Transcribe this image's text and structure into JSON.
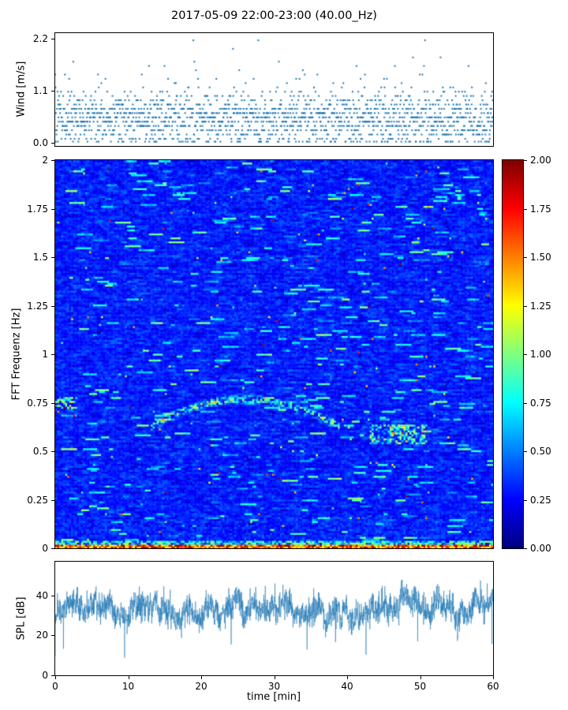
{
  "title": "2017-05-09 22:00-23:00 (40.00_Hz)",
  "colors": {
    "accent": "#1f77b4",
    "axis": "#000000",
    "background": "#ffffff"
  },
  "chart_data": [
    {
      "id": "wind",
      "type": "scatter",
      "ylabel": "Wind [m/s]",
      "ytick_values": [
        0.0,
        1.1,
        2.2
      ],
      "ytick_labels": [
        "0.0",
        "1.1",
        "2.2"
      ],
      "ylim": [
        -0.06,
        2.31
      ],
      "xlim": [
        0,
        60
      ],
      "marker_color": "#1f77b4",
      "n_points": 1700,
      "seed": 20170509,
      "mean": 0.52,
      "std": 0.27,
      "gust_prob": 0.1,
      "gust_scale": 1.5,
      "calm_prob": 0.05,
      "calm_value": 0.03,
      "quantize_step": 0.09
    },
    {
      "id": "spectrogram",
      "type": "heatmap",
      "ylabel": "FFT Frequenz [Hz]",
      "ytick_values": [
        0,
        0.25,
        0.5,
        0.75,
        1,
        1.25,
        1.5,
        1.75,
        2
      ],
      "ytick_labels": [
        "0",
        "0.25",
        "0.5",
        "0.75",
        "1",
        "1.25",
        "1.5",
        "1.75",
        "2"
      ],
      "ylim": [
        0,
        2
      ],
      "xlim": [
        0,
        60
      ],
      "clim": [
        0,
        2
      ],
      "colormap": "jet",
      "rows": 197,
      "cols": 220,
      "seed": 42,
      "base_mean": 0.3,
      "base_std": 0.11,
      "smooth": 0.45,
      "streak_prob": 0.012,
      "streak_len": [
        2,
        9
      ],
      "streak_add": [
        0.15,
        0.7
      ],
      "speckle_prob": 0.003,
      "speckle_add": [
        0.4,
        1.2
      ],
      "hot_speckle_prob": 0.0007,
      "hot_speckle_add": [
        1.0,
        1.8
      ],
      "features": [
        {
          "kind": "band",
          "fmax": 0.022,
          "add_min": 1.1,
          "add_max": 2.0,
          "prob": 1.0
        },
        {
          "kind": "band",
          "fmax": 0.045,
          "add_min": 0.35,
          "add_max": 1.1,
          "prob": 0.8
        },
        {
          "kind": "band",
          "fmax": 0.16,
          "add_min": 0.1,
          "add_max": 0.45,
          "prob": 0.35
        },
        {
          "kind": "arc",
          "t_center": 26,
          "t_half": 13,
          "f_peak": 0.77,
          "curve": 0.00085,
          "width": 0.025,
          "add_min": 0.25,
          "add_max": 1.0,
          "prob": 0.6
        },
        {
          "kind": "blob",
          "t0": 43,
          "t1": 51,
          "f0": 0.54,
          "f1": 0.64,
          "add_min": 0.2,
          "add_max": 0.9,
          "prob": 0.45
        },
        {
          "kind": "blob",
          "t0": 0,
          "t1": 3,
          "f0": 0.72,
          "f1": 0.78,
          "add_min": 0.3,
          "add_max": 1.0,
          "prob": 0.5
        }
      ]
    },
    {
      "id": "colorbar",
      "type": "colorbar",
      "colormap": "jet",
      "tick_values": [
        0,
        0.25,
        0.5,
        0.75,
        1.0,
        1.25,
        1.5,
        1.75,
        2.0
      ],
      "tick_labels": [
        "0.00",
        "0.25",
        "0.50",
        "0.75",
        "1.00",
        "1.25",
        "1.50",
        "1.75",
        "2.00"
      ],
      "range": [
        0,
        2
      ]
    },
    {
      "id": "spl",
      "type": "line",
      "ylabel": "SPL [dB]",
      "xlabel": "time [min]",
      "ytick_values": [
        0,
        20,
        40
      ],
      "ytick_labels": [
        "0",
        "20",
        "40"
      ],
      "xtick_values": [
        0,
        10,
        20,
        30,
        40,
        50,
        60
      ],
      "xtick_labels": [
        "0",
        "10",
        "20",
        "30",
        "40",
        "50",
        "60"
      ],
      "ylim": [
        0,
        57
      ],
      "xlim": [
        0,
        60
      ],
      "line_color": "#1f77b4",
      "n_points": 2400,
      "seed": 99,
      "base": 33,
      "noise_std": 3.3,
      "walk_persist": 0.975,
      "walk_step": 0.9,
      "dip_prob": 0.006,
      "dip_min": 8,
      "dip_max": 26,
      "spike_prob": 0.004,
      "spike_min": 5,
      "spike_max": 11,
      "clamp": [
        6,
        53
      ]
    }
  ]
}
